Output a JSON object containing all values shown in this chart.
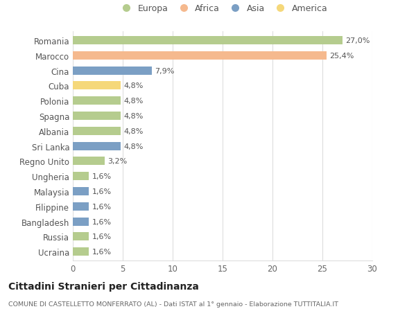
{
  "categories": [
    "Romania",
    "Marocco",
    "Cina",
    "Cuba",
    "Polonia",
    "Spagna",
    "Albania",
    "Sri Lanka",
    "Regno Unito",
    "Ungheria",
    "Malaysia",
    "Filippine",
    "Bangladesh",
    "Russia",
    "Ucraina"
  ],
  "values": [
    27.0,
    25.4,
    7.9,
    4.8,
    4.8,
    4.8,
    4.8,
    4.8,
    3.2,
    1.6,
    1.6,
    1.6,
    1.6,
    1.6,
    1.6
  ],
  "continents": [
    "Europa",
    "Africa",
    "Asia",
    "America",
    "Europa",
    "Europa",
    "Europa",
    "Asia",
    "Europa",
    "Europa",
    "Asia",
    "Asia",
    "Asia",
    "Europa",
    "Europa"
  ],
  "continent_colors": {
    "Europa": "#b5cc8e",
    "Africa": "#f5b98e",
    "Asia": "#7b9fc4",
    "America": "#f5d87a"
  },
  "labels": [
    "27,0%",
    "25,4%",
    "7,9%",
    "4,8%",
    "4,8%",
    "4,8%",
    "4,8%",
    "4,8%",
    "3,2%",
    "1,6%",
    "1,6%",
    "1,6%",
    "1,6%",
    "1,6%",
    "1,6%"
  ],
  "xlim": [
    0,
    30
  ],
  "xticks": [
    0,
    5,
    10,
    15,
    20,
    25,
    30
  ],
  "title": "Cittadini Stranieri per Cittadinanza",
  "subtitle": "COMUNE DI CASTELLETTO MONFERRATO (AL) - Dati ISTAT al 1° gennaio - Elaborazione TUTTITALIA.IT",
  "legend_order": [
    "Europa",
    "Africa",
    "Asia",
    "America"
  ],
  "background_color": "#ffffff",
  "grid_color": "#dddddd"
}
